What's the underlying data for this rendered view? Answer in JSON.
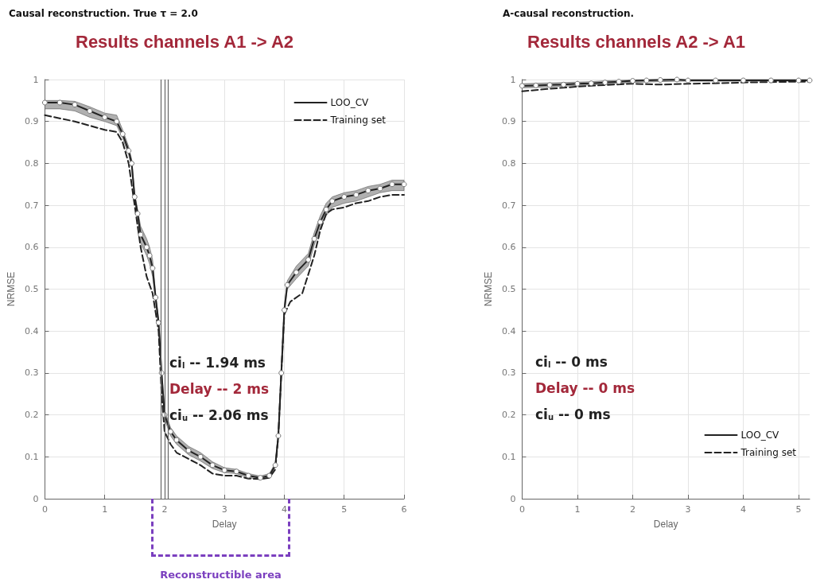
{
  "chart_data": [
    {
      "type": "line",
      "title": "Results channels A1 -> A2",
      "subtitle": "Causal reconstruction. True τ = 2.0",
      "xlabel": "Delay",
      "ylabel": "NRMSE",
      "xlim": [
        0,
        6
      ],
      "xticks": [
        0,
        1,
        2,
        3,
        4,
        5,
        6
      ],
      "ylim": [
        0,
        1
      ],
      "yticks": [
        0,
        0.1,
        0.2,
        0.3,
        0.4,
        0.5,
        0.6,
        0.7,
        0.8,
        0.9,
        1
      ],
      "grid": true,
      "legend": "top right",
      "annotations": [
        "ci$_{l}$ -- 1.94 ms",
        "Delay -- 2 ms",
        "ci$_{u}$ -- 2.06 ms",
        "Reconstructible area"
      ],
      "ref_lines": [
        {
          "axis": "x",
          "value": 1.94,
          "color": "#666666"
        },
        {
          "axis": "x",
          "value": 2,
          "color": "#666666"
        },
        {
          "axis": "x",
          "value": 2.06,
          "color": "#666666"
        }
      ],
      "series": [
        {
          "name": "LOO_CV",
          "color": "#222222",
          "line_style": "solid",
          "marker": "circle",
          "x": [
            0,
            0.25,
            0.5,
            0.75,
            1,
            1.2,
            1.3,
            1.4,
            1.45,
            1.5,
            1.55,
            1.6,
            1.7,
            1.75,
            1.8,
            1.85,
            1.9,
            1.95,
            2,
            2.1,
            2.2,
            2.4,
            2.6,
            2.8,
            3,
            3.2,
            3.4,
            3.6,
            3.75,
            3.85,
            3.9,
            3.95,
            4,
            4.05,
            4.2,
            4.4,
            4.5,
            4.6,
            4.7,
            4.8,
            5,
            5.2,
            5.4,
            5.6,
            5.8,
            6
          ],
          "values": [
            0.945,
            0.945,
            0.94,
            0.925,
            0.91,
            0.9,
            0.87,
            0.83,
            0.8,
            0.72,
            0.68,
            0.63,
            0.6,
            0.58,
            0.55,
            0.48,
            0.42,
            0.3,
            0.2,
            0.16,
            0.14,
            0.115,
            0.1,
            0.08,
            0.068,
            0.065,
            0.055,
            0.05,
            0.055,
            0.08,
            0.15,
            0.3,
            0.45,
            0.51,
            0.54,
            0.57,
            0.62,
            0.66,
            0.69,
            0.71,
            0.72,
            0.725,
            0.735,
            0.74,
            0.75,
            0.75
          ],
          "lower": [
            0.93,
            0.93,
            0.925,
            0.91,
            0.9,
            0.89,
            0.86,
            0.82,
            0.79,
            0.71,
            0.67,
            0.61,
            0.58,
            0.56,
            0.53,
            0.47,
            0.41,
            0.29,
            0.19,
            0.15,
            0.13,
            0.105,
            0.09,
            0.072,
            0.062,
            0.06,
            0.05,
            0.046,
            0.05,
            0.075,
            0.14,
            0.29,
            0.44,
            0.5,
            0.525,
            0.555,
            0.605,
            0.645,
            0.675,
            0.695,
            0.705,
            0.71,
            0.72,
            0.73,
            0.735,
            0.735
          ],
          "upper": [
            0.95,
            0.95,
            0.948,
            0.935,
            0.92,
            0.915,
            0.88,
            0.84,
            0.81,
            0.73,
            0.69,
            0.65,
            0.62,
            0.6,
            0.57,
            0.49,
            0.43,
            0.31,
            0.21,
            0.17,
            0.15,
            0.125,
            0.11,
            0.088,
            0.074,
            0.07,
            0.06,
            0.054,
            0.06,
            0.085,
            0.16,
            0.31,
            0.46,
            0.52,
            0.555,
            0.585,
            0.635,
            0.675,
            0.705,
            0.72,
            0.73,
            0.735,
            0.745,
            0.75,
            0.76,
            0.76
          ]
        },
        {
          "name": "Training set",
          "color": "#222222",
          "line_style": "dashed",
          "marker": "none",
          "x": [
            0,
            0.5,
            1,
            1.2,
            1.3,
            1.4,
            1.5,
            1.6,
            1.7,
            1.8,
            1.9,
            1.95,
            2,
            2.1,
            2.2,
            2.4,
            2.6,
            2.8,
            3,
            3.2,
            3.4,
            3.6,
            3.75,
            3.85,
            3.9,
            3.95,
            4,
            4.1,
            4.3,
            4.5,
            4.6,
            4.7,
            4.8,
            5,
            5.2,
            5.4,
            5.6,
            5.8,
            6
          ],
          "values": [
            0.915,
            0.9,
            0.88,
            0.875,
            0.85,
            0.8,
            0.7,
            0.6,
            0.53,
            0.49,
            0.4,
            0.25,
            0.16,
            0.13,
            0.11,
            0.095,
            0.08,
            0.06,
            0.055,
            0.055,
            0.048,
            0.047,
            0.05,
            0.07,
            0.15,
            0.3,
            0.44,
            0.47,
            0.49,
            0.58,
            0.64,
            0.68,
            0.69,
            0.695,
            0.705,
            0.71,
            0.72,
            0.725,
            0.725
          ]
        }
      ]
    },
    {
      "type": "line",
      "title": "Results channels A2 -> A1",
      "subtitle": "A-causal reconstruction.",
      "xlabel": "Delay",
      "ylabel": "NRMSE",
      "xlim": [
        0,
        5.2
      ],
      "xticks": [
        0,
        1,
        2,
        3,
        4,
        5
      ],
      "ylim": [
        0,
        1
      ],
      "yticks": [
        0,
        0.1,
        0.2,
        0.3,
        0.4,
        0.5,
        0.6,
        0.7,
        0.8,
        0.9,
        1
      ],
      "grid": true,
      "legend": "bottom right",
      "annotations": [
        "ci$_{l}$ -- 0 ms",
        "Delay -- 0 ms",
        "ci$_{u}$ -- 0 ms"
      ],
      "series": [
        {
          "name": "LOO_CV",
          "color": "#222222",
          "line_style": "solid",
          "marker": "circle",
          "x": [
            0,
            0.25,
            0.5,
            0.75,
            1,
            1.25,
            1.5,
            1.75,
            2,
            2.25,
            2.5,
            2.8,
            3,
            3.5,
            4,
            4.5,
            5,
            5.2
          ],
          "values": [
            0.985,
            0.986,
            0.987,
            0.988,
            0.99,
            0.991,
            0.993,
            0.995,
            0.997,
            0.998,
            0.999,
            1,
            0.998,
            0.998,
            0.998,
            0.998,
            0.998,
            0.998
          ],
          "lower": [
            0.98,
            0.981,
            0.982,
            0.984,
            0.986,
            0.987,
            0.989,
            0.991,
            0.993,
            0.994,
            0.995,
            0.996,
            0.996,
            0.996,
            0.996,
            0.996,
            0.996,
            0.996
          ],
          "upper": [
            0.99,
            0.991,
            0.992,
            0.993,
            0.994,
            0.995,
            0.997,
            0.998,
            0.999,
            1,
            1,
            1,
            1,
            1,
            1,
            1,
            1,
            1
          ]
        },
        {
          "name": "Training set",
          "color": "#222222",
          "line_style": "dashed",
          "marker": "none",
          "x": [
            0,
            0.5,
            1,
            1.5,
            2,
            2.5,
            3,
            3.5,
            4,
            4.5,
            5,
            5.2
          ],
          "values": [
            0.972,
            0.978,
            0.983,
            0.987,
            0.99,
            0.988,
            0.99,
            0.991,
            0.993,
            0.994,
            0.995,
            0.995
          ]
        }
      ]
    }
  ]
}
